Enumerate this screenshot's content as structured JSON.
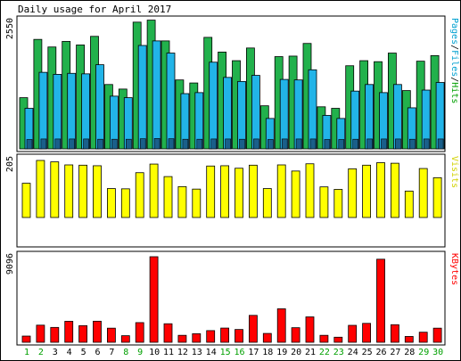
{
  "chart_data": {
    "type": "bar",
    "title": "Daily usage for April 2017",
    "categories": [
      "1",
      "2",
      "3",
      "4",
      "5",
      "6",
      "7",
      "8",
      "9",
      "10",
      "11",
      "12",
      "13",
      "14",
      "15",
      "16",
      "17",
      "18",
      "19",
      "20",
      "21",
      "22",
      "23",
      "24",
      "25",
      "26",
      "27",
      "28",
      "29",
      "30"
    ],
    "weekend_days": [
      "1",
      "2",
      "8",
      "9",
      "15",
      "16",
      "22",
      "23",
      "29",
      "30"
    ],
    "panels": [
      {
        "id": "hits",
        "max_label": "2550",
        "ymax": 2550,
        "ylabel_parts": [
          {
            "text": "Pages",
            "color": "#00a0d0"
          },
          {
            "text": "/",
            "color": "#000000"
          },
          {
            "text": "Files",
            "color": "#00a0d0"
          },
          {
            "text": "/",
            "color": "#000000"
          },
          {
            "text": "Hits",
            "color": "#00a000"
          }
        ],
        "series": [
          {
            "name": "Hits",
            "color": "#22b14c",
            "values": [
              1010,
              2160,
              2010,
              2120,
              2050,
              2220,
              1270,
              1180,
              2500,
              2540,
              2130,
              1360,
              1300,
              2200,
              1910,
              1740,
              1990,
              850,
              1820,
              1830,
              2080,
              830,
              800,
              1640,
              1740,
              1720,
              1890,
              1150,
              1730,
              1840
            ]
          },
          {
            "name": "Files",
            "color": "#22b4e8",
            "values": [
              800,
              1510,
              1470,
              1490,
              1480,
              1660,
              1040,
              1010,
              2040,
              2130,
              1890,
              1090,
              1110,
              1710,
              1410,
              1330,
              1450,
              600,
              1370,
              1360,
              1560,
              660,
              600,
              1140,
              1270,
              1110,
              1270,
              810,
              1160,
              1310
            ]
          },
          {
            "name": "Pages",
            "color": "#1a5f8a",
            "values": [
              185,
              195,
              195,
              195,
              195,
              190,
              190,
              190,
              200,
              205,
              200,
              190,
              190,
              195,
              195,
              190,
              195,
              185,
              195,
              195,
              195,
              185,
              185,
              190,
              195,
              195,
              195,
              190,
              195,
              195
            ]
          }
        ]
      },
      {
        "id": "visits",
        "max_label": "205",
        "ymax": 205,
        "ylabel_parts": [
          {
            "text": "Visits",
            "color": "#d2d200"
          }
        ],
        "series": [
          {
            "name": "Visits",
            "color": "#ffff00",
            "values": [
              123,
              205,
              200,
              189,
              188,
              186,
              104,
              103,
              161,
              192,
              147,
              111,
              102,
              185,
              186,
              177,
              188,
              104,
              189,
              167,
              193,
              110,
              101,
              175,
              188,
              197,
              195,
              95,
              176,
              143
            ]
          }
        ]
      },
      {
        "id": "kbytes",
        "max_label": "9096",
        "ymax": 9096,
        "ylabel_parts": [
          {
            "text": "KBytes",
            "color": "#ff0000"
          }
        ],
        "series": [
          {
            "name": "KBytes",
            "color": "#ff0000",
            "values": [
              660,
              1820,
              1580,
              2230,
              1770,
              2240,
              1500,
              700,
              2090,
              9096,
              1970,
              740,
              910,
              1240,
              1510,
              1360,
              2860,
              940,
              3560,
              1550,
              2700,
              740,
              540,
              1800,
              2010,
              8830,
              1870,
              620,
              1070,
              1500
            ]
          }
        ]
      }
    ]
  }
}
